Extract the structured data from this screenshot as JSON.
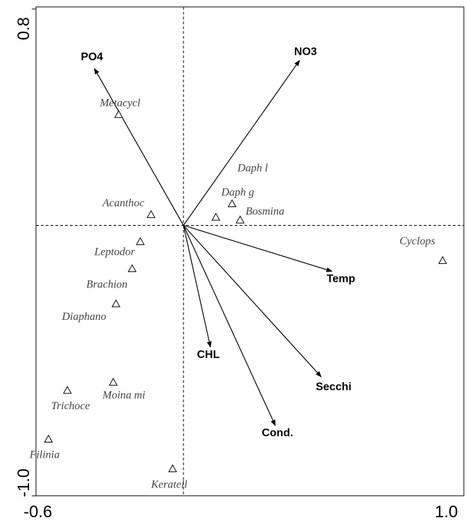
{
  "chart_data": {
    "type": "scatter",
    "title": "",
    "xlabel": "",
    "ylabel": "",
    "xlim": [
      -0.6,
      1.0
    ],
    "ylim": [
      -1.0,
      0.8
    ],
    "x_tick_labels": [
      "-0.6",
      "1.0"
    ],
    "y_tick_labels": [
      "0.8",
      "-1.0"
    ],
    "axes_cross_at": [
      0,
      0
    ],
    "grid": false,
    "legend": "none",
    "arrows": [
      {
        "name": "PO4",
        "x": -0.33,
        "y": 0.58,
        "label_x": -0.38,
        "label_y": 0.61
      },
      {
        "name": "NO3",
        "x": 0.43,
        "y": 0.61,
        "label_x": 0.41,
        "label_y": 0.63
      },
      {
        "name": "Temp",
        "x": 0.55,
        "y": -0.17,
        "label_x": 0.53,
        "label_y": -0.21
      },
      {
        "name": "CHL",
        "x": 0.1,
        "y": -0.45,
        "label_x": 0.05,
        "label_y": -0.49
      },
      {
        "name": "Secchi",
        "x": 0.51,
        "y": -0.56,
        "label_x": 0.49,
        "label_y": -0.61
      },
      {
        "name": "Cond.",
        "x": 0.34,
        "y": -0.74,
        "label_x": 0.29,
        "label_y": -0.78
      }
    ],
    "species": [
      {
        "name": "Metacycl",
        "x": -0.24,
        "y": 0.41,
        "label_x": -0.31,
        "label_y": 0.44
      },
      {
        "name": "Daph l",
        "x": 0.18,
        "y": 0.08,
        "label_x": 0.2,
        "label_y": 0.2
      },
      {
        "name": "Daph g",
        "x": 0.12,
        "y": 0.03,
        "label_x": 0.14,
        "label_y": 0.11
      },
      {
        "name": "Bosmina",
        "x": 0.21,
        "y": 0.02,
        "label_x": 0.23,
        "label_y": 0.04
      },
      {
        "name": "Acanthoc",
        "x": -0.12,
        "y": 0.04,
        "label_x": -0.3,
        "label_y": 0.07
      },
      {
        "name": "Cyclops",
        "x": 0.96,
        "y": -0.13,
        "label_x": 0.8,
        "label_y": -0.07
      },
      {
        "name": "Leptodor",
        "x": -0.16,
        "y": -0.06,
        "label_x": -0.33,
        "label_y": -0.11
      },
      {
        "name": "Brachion",
        "x": -0.19,
        "y": -0.16,
        "label_x": -0.36,
        "label_y": -0.23
      },
      {
        "name": "Diaphano",
        "x": -0.25,
        "y": -0.29,
        "label_x": -0.45,
        "label_y": -0.35
      },
      {
        "name": "Moina mi",
        "x": -0.26,
        "y": -0.58,
        "label_x": -0.3,
        "label_y": -0.64
      },
      {
        "name": "Trichoce",
        "x": -0.43,
        "y": -0.61,
        "label_x": -0.49,
        "label_y": -0.68
      },
      {
        "name": "Filinia",
        "x": -0.5,
        "y": -0.79,
        "label_x": -0.57,
        "label_y": -0.86
      },
      {
        "name": "Keratell",
        "x": -0.04,
        "y": -0.9,
        "label_x": -0.12,
        "label_y": -0.97
      }
    ]
  }
}
